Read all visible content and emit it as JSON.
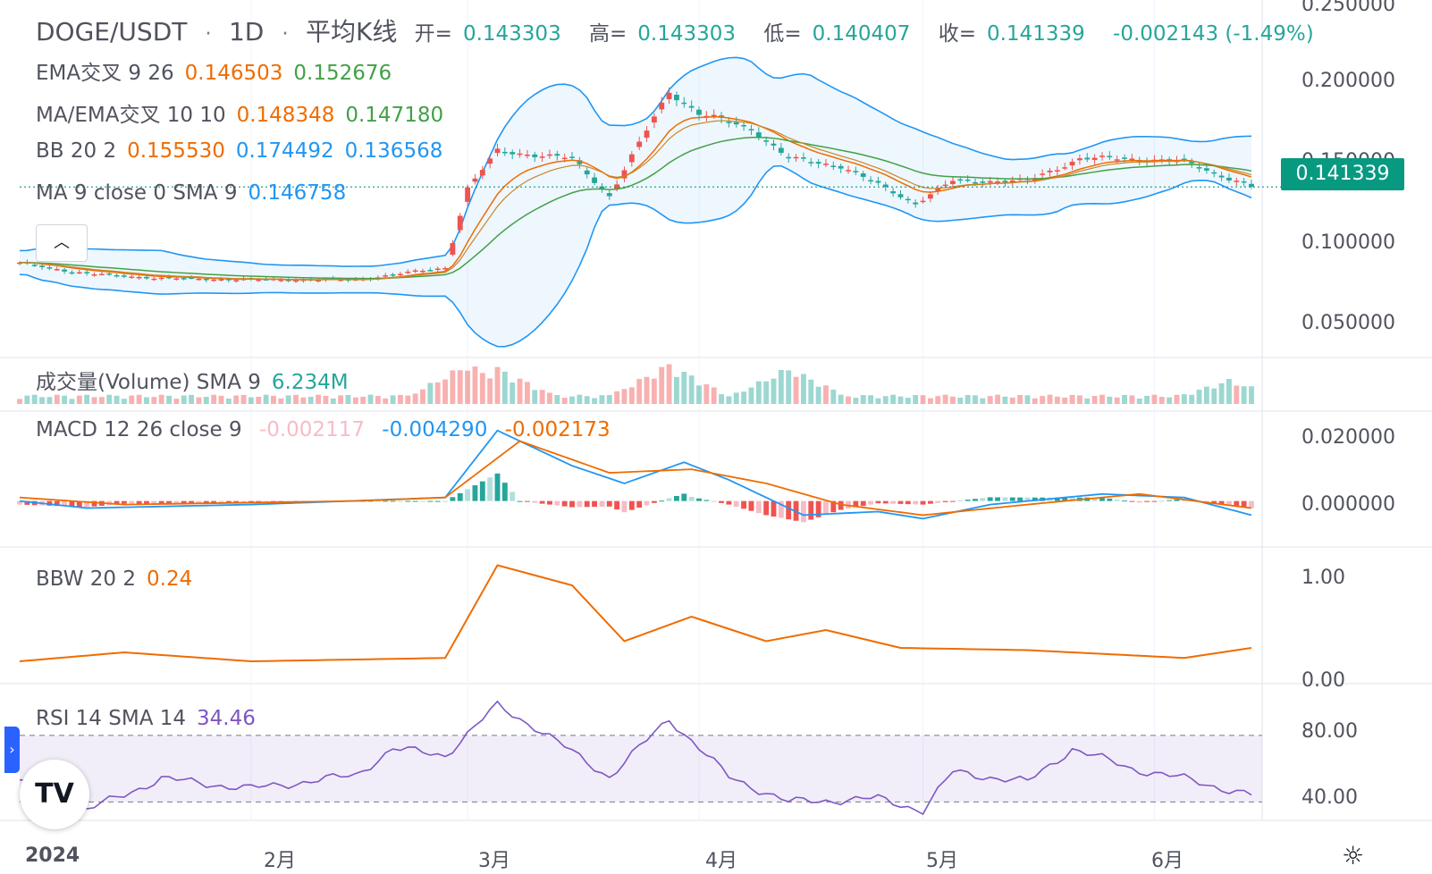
{
  "header": {
    "symbol": "DOGE/USDT",
    "interval": "1D",
    "chart_type": "平均K线",
    "ohlc": [
      {
        "label": "开=",
        "value": "0.143303"
      },
      {
        "label": "高=",
        "value": "0.143303"
      },
      {
        "label": "低=",
        "value": "0.140407"
      },
      {
        "label": "收=",
        "value": "0.141339"
      }
    ],
    "change": "-0.002143 (-1.49%)"
  },
  "indicators": [
    {
      "label": "EMA交叉 9 26",
      "values": [
        "0.146503",
        "0.152676"
      ],
      "colors": [
        "#ef6c00",
        "#43a047"
      ]
    },
    {
      "label": "MA/EMA交叉 10 10",
      "values": [
        "0.148348",
        "0.147180"
      ],
      "colors": [
        "#ef6c00",
        "#43a047"
      ]
    },
    {
      "label": "BB 20 2",
      "values": [
        "0.155530",
        "0.174492",
        "0.136568"
      ],
      "colors": [
        "#ef6c00",
        "#2196f3",
        "#2196f3"
      ]
    },
    {
      "label": "MA 9 close 0 SMA 9",
      "values": [
        "0.146758"
      ],
      "colors": [
        "#2196f3"
      ]
    }
  ],
  "volume_legend": {
    "label": "成交量(Volume) SMA 9",
    "value": "6.234M",
    "color": "#26a69a"
  },
  "macd_legend": {
    "label": "MACD 12 26 close 9",
    "values": [
      "-0.002117",
      "-0.004290",
      "-0.002173"
    ],
    "colors": [
      "#f7bcc6",
      "#2196f3",
      "#ef6c00"
    ]
  },
  "bbw_legend": {
    "label": "BBW 20 2",
    "value": "0.24",
    "color": "#ef6c00"
  },
  "rsi_legend": {
    "label": "RSI 14 SMA 14",
    "value": "34.46",
    "color": "#7e57c2"
  },
  "price_axis": [
    "0.250000",
    "0.200000",
    "0.150000",
    "0.100000",
    "0.050000"
  ],
  "last_price": "0.141339",
  "macd_axis": [
    "0.020000",
    "0.000000"
  ],
  "bbw_axis": [
    "1.00",
    "0.00"
  ],
  "rsi_axis": [
    "80.00",
    "40.00"
  ],
  "time_axis": [
    "2024",
    "2月",
    "3月",
    "4月",
    "5月",
    "6月"
  ],
  "colors": {
    "up": "#26a69a",
    "down": "#ef5350",
    "ema_fast": "#ef6c00",
    "ema_slow": "#43a047",
    "bb": "#2196f3",
    "macd": "#2196f3",
    "signal": "#ef6c00",
    "rsi": "#7e57c2",
    "price_tag": "#089981"
  },
  "icons": {
    "collapse": "chevron-up-icon",
    "side_tab": "chevron-right-icon",
    "logo": "tradingview-logo",
    "settings": "gear-icon"
  },
  "chart_data": {
    "type": "heikin-ashi candlestick",
    "symbol": "DOGE/USDT",
    "interval": "1D",
    "x_start": "2024-01-01",
    "x_end": "2024-06-14",
    "price_range": [
      0.03,
      0.26
    ],
    "price_anchors": [
      [
        "2024-01-01",
        0.09
      ],
      [
        "2024-01-10",
        0.083
      ],
      [
        "2024-01-20",
        0.08
      ],
      [
        "2024-02-01",
        0.079
      ],
      [
        "2024-02-15",
        0.079
      ],
      [
        "2024-02-27",
        0.087
      ],
      [
        "2024-03-01",
        0.14
      ],
      [
        "2024-03-05",
        0.165
      ],
      [
        "2024-03-15",
        0.16
      ],
      [
        "2024-03-20",
        0.135
      ],
      [
        "2024-03-28",
        0.205
      ],
      [
        "2024-04-01",
        0.19
      ],
      [
        "2024-04-08",
        0.18
      ],
      [
        "2024-04-13",
        0.16
      ],
      [
        "2024-04-20",
        0.155
      ],
      [
        "2024-04-30",
        0.13
      ],
      [
        "2024-05-05",
        0.145
      ],
      [
        "2024-05-15",
        0.145
      ],
      [
        "2024-05-22",
        0.16
      ],
      [
        "2024-05-28",
        0.16
      ],
      [
        "2024-06-05",
        0.158
      ],
      [
        "2024-06-14",
        0.141
      ]
    ],
    "rsi_range": [
      20,
      100
    ],
    "rsi_levels": [
      70,
      30
    ],
    "rsi_anchors": [
      [
        "2024-01-01",
        42
      ],
      [
        "2024-01-10",
        25
      ],
      [
        "2024-01-20",
        44
      ],
      [
        "2024-02-01",
        38
      ],
      [
        "2024-02-15",
        46
      ],
      [
        "2024-02-20",
        62
      ],
      [
        "2024-02-27",
        58
      ],
      [
        "2024-03-05",
        88
      ],
      [
        "2024-03-10",
        75
      ],
      [
        "2024-03-20",
        45
      ],
      [
        "2024-03-28",
        80
      ],
      [
        "2024-04-05",
        45
      ],
      [
        "2024-04-13",
        30
      ],
      [
        "2024-04-25",
        32
      ],
      [
        "2024-05-01",
        25
      ],
      [
        "2024-05-05",
        48
      ],
      [
        "2024-05-15",
        42
      ],
      [
        "2024-05-21",
        62
      ],
      [
        "2024-05-29",
        50
      ],
      [
        "2024-06-05",
        44
      ],
      [
        "2024-06-14",
        34
      ]
    ],
    "bbw_range": [
      0,
      1
    ],
    "bbw_anchors": [
      [
        "2024-01-01",
        0.12
      ],
      [
        "2024-01-15",
        0.2
      ],
      [
        "2024-02-01",
        0.12
      ],
      [
        "2024-02-27",
        0.15
      ],
      [
        "2024-03-05",
        0.98
      ],
      [
        "2024-03-15",
        0.8
      ],
      [
        "2024-03-22",
        0.3
      ],
      [
        "2024-03-31",
        0.52
      ],
      [
        "2024-04-10",
        0.3
      ],
      [
        "2024-04-18",
        0.4
      ],
      [
        "2024-04-28",
        0.24
      ],
      [
        "2024-05-15",
        0.22
      ],
      [
        "2024-06-05",
        0.15
      ],
      [
        "2024-06-14",
        0.24
      ]
    ],
    "macd_range": [
      -0.012,
      0.025
    ],
    "macd_anchors": [
      [
        "2024-01-01",
        0.0
      ],
      [
        "2024-01-10",
        -0.002
      ],
      [
        "2024-02-01",
        -0.001
      ],
      [
        "2024-02-27",
        0.001
      ],
      [
        "2024-03-05",
        0.02
      ],
      [
        "2024-03-15",
        0.01
      ],
      [
        "2024-03-22",
        0.005
      ],
      [
        "2024-03-30",
        0.011
      ],
      [
        "2024-04-05",
        0.006
      ],
      [
        "2024-04-15",
        -0.004
      ],
      [
        "2024-04-25",
        -0.003
      ],
      [
        "2024-05-01",
        -0.005
      ],
      [
        "2024-05-10",
        -0.001
      ],
      [
        "2024-05-25",
        0.002
      ],
      [
        "2024-06-05",
        0.001
      ],
      [
        "2024-06-14",
        -0.004
      ]
    ],
    "signal_anchors": [
      [
        "2024-01-01",
        0.001
      ],
      [
        "2024-01-15",
        -0.001
      ],
      [
        "2024-02-15",
        0.0
      ],
      [
        "2024-02-27",
        0.001
      ],
      [
        "2024-03-08",
        0.017
      ],
      [
        "2024-03-20",
        0.008
      ],
      [
        "2024-03-31",
        0.009
      ],
      [
        "2024-04-10",
        0.005
      ],
      [
        "2024-04-20",
        -0.001
      ],
      [
        "2024-05-01",
        -0.004
      ],
      [
        "2024-05-15",
        -0.001
      ],
      [
        "2024-05-30",
        0.002
      ],
      [
        "2024-06-14",
        -0.002
      ]
    ],
    "volume_spikes": [
      [
        "2024-03-01",
        1.0
      ],
      [
        "2024-03-05",
        0.9
      ],
      [
        "2024-03-28",
        1.0
      ],
      [
        "2024-04-13",
        0.9
      ],
      [
        "2024-06-11",
        0.6
      ]
    ]
  }
}
